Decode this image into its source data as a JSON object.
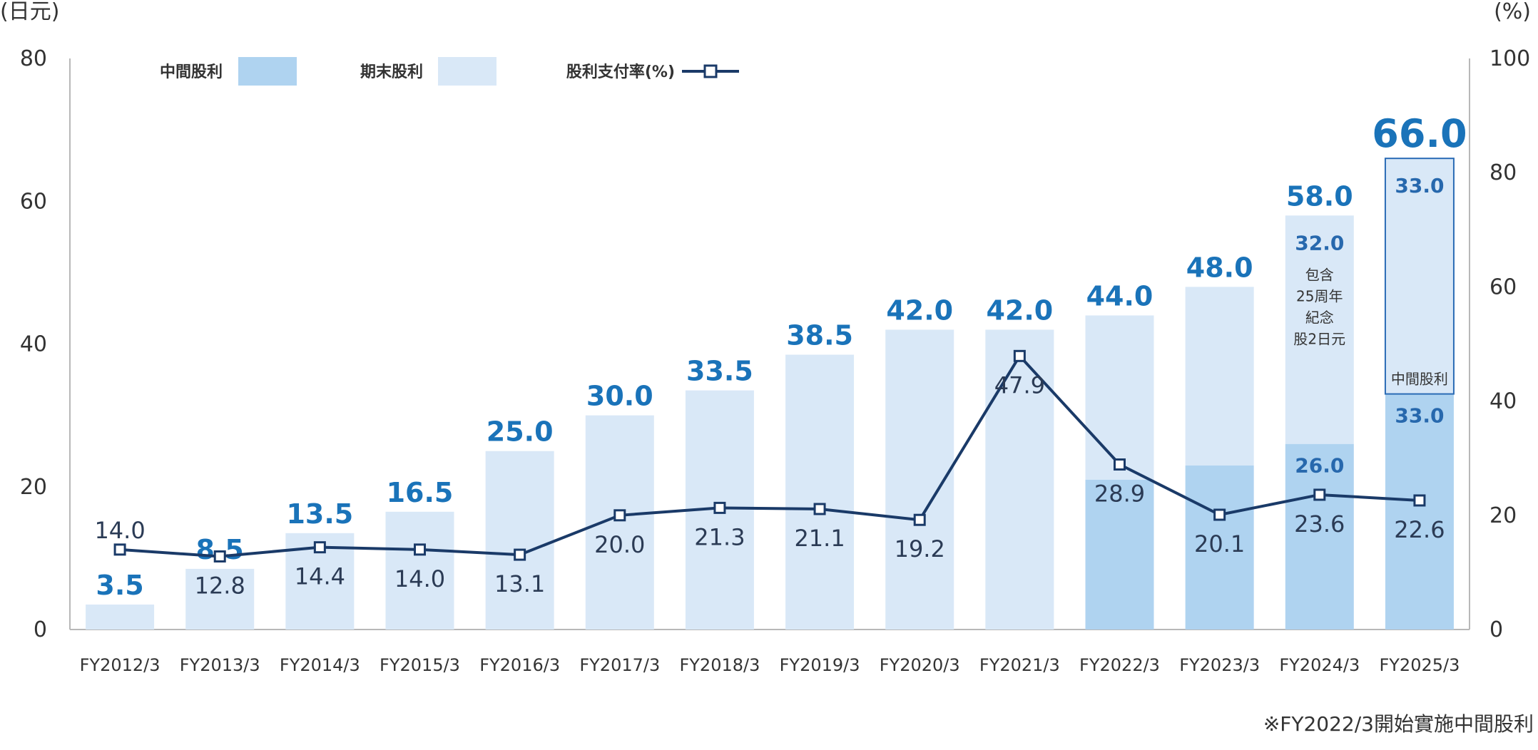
{
  "chart_data": {
    "type": "bar",
    "y_left_label": "(日元)",
    "y_right_label": "(%)",
    "y_left_ticks": [
      "0",
      "20",
      "40",
      "60",
      "80"
    ],
    "y_right_ticks": [
      "0",
      "20",
      "40",
      "60",
      "80",
      "100"
    ],
    "ylim_left": [
      0,
      80
    ],
    "ylim_right": [
      0,
      100
    ],
    "categories": [
      "FY2012/3",
      "FY2013/3",
      "FY2014/3",
      "FY2015/3",
      "FY2016/3",
      "FY2017/3",
      "FY2018/3",
      "FY2019/3",
      "FY2020/3",
      "FY2021/3",
      "FY2022/3",
      "FY2023/3",
      "FY2024/3",
      "FY2025/3"
    ],
    "total_labels": [
      "3.5",
      "8.5",
      "13.5",
      "16.5",
      "25.0",
      "30.0",
      "33.5",
      "38.5",
      "42.0",
      "42.0",
      "44.0",
      "48.0",
      "58.0",
      "66.0"
    ],
    "series": [
      {
        "name": "中間股利",
        "type": "bar",
        "values": [
          0,
          0,
          0,
          0,
          0,
          0,
          0,
          0,
          0,
          0,
          21.0,
          23.0,
          26.0,
          33.0
        ]
      },
      {
        "name": "期末股利",
        "type": "bar",
        "values": [
          3.5,
          8.5,
          13.5,
          16.5,
          25.0,
          30.0,
          33.5,
          38.5,
          42.0,
          42.0,
          23.0,
          25.0,
          32.0,
          33.0
        ]
      },
      {
        "name": "股利支付率(%)",
        "type": "line",
        "axis": "right",
        "values": [
          14.0,
          12.8,
          14.4,
          14.0,
          13.1,
          20.0,
          21.3,
          21.1,
          19.2,
          47.9,
          28.9,
          20.1,
          23.6,
          22.6
        ],
        "labels": [
          "14.0",
          "12.8",
          "14.4",
          "14.0",
          "13.1",
          "20.0",
          "21.3",
          "21.1",
          "19.2",
          "47.9",
          "28.9",
          "20.1",
          "23.6",
          "22.6"
        ]
      }
    ],
    "segment_labels": [
      {
        "category": "FY2024/3",
        "interim": "26.0",
        "final": "32.0"
      },
      {
        "category": "FY2025/3",
        "interim": "33.0",
        "final": "33.0"
      }
    ],
    "annotations": {
      "fy2024_note": [
        "包含",
        "25周年",
        "紀念",
        "股2日元"
      ],
      "fy2025_box_label": "中間股利"
    },
    "legend": {
      "items": [
        "中間股利",
        "期末股利",
        "股利支付率(%)"
      ],
      "placement": "top-left"
    },
    "footnote": "※FY2022/3開始實施中間股利",
    "grid": false
  },
  "colors": {
    "interim_bar": "#afd3f0",
    "final_bar": "#d9e8f7",
    "line": "#1a3a68",
    "marker_fill": "#ffffff",
    "total_label": "#1a73b9",
    "highlight_total": "#9a7d1e",
    "axis": "#b8b8b8",
    "box_outline": "#2a6bb5"
  }
}
